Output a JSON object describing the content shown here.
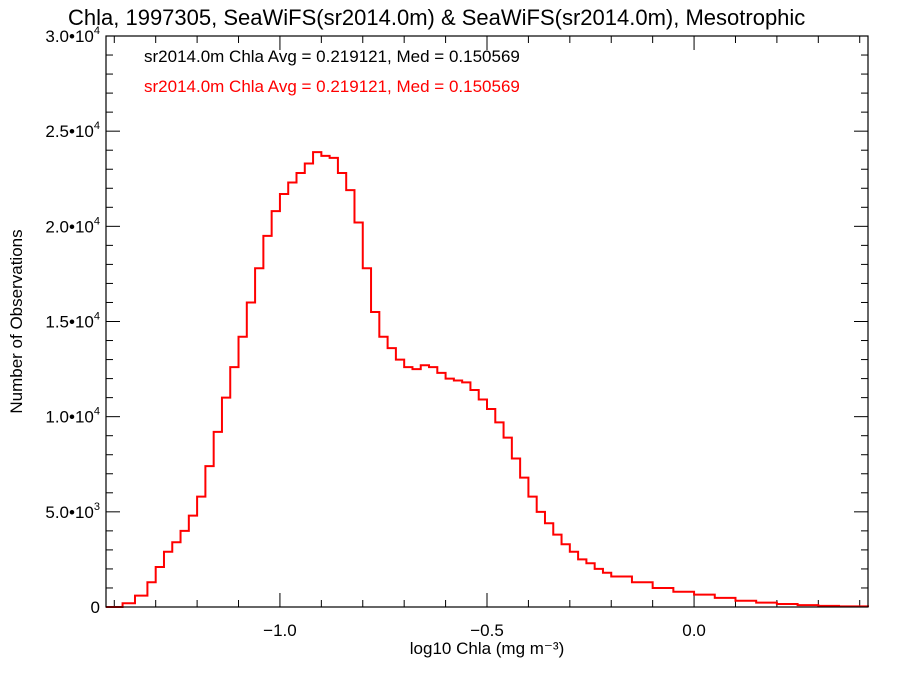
{
  "chart_data": {
    "type": "line",
    "step": true,
    "title": "Chla, 1997305, SeaWiFS(sr2014.0m) & SeaWiFS(sr2014.0m), Mesotrophic",
    "xlabel": "log10 Chla (mg m⁻³)",
    "ylabel": "Number of Observations",
    "xlim": [
      -1.42,
      0.42
    ],
    "ylim": [
      0,
      30000
    ],
    "x_ticks": [
      {
        "value": -1.0,
        "label": "−1.0"
      },
      {
        "value": -0.5,
        "label": "−0.5"
      },
      {
        "value": 0.0,
        "label": "0.0"
      }
    ],
    "y_ticks": [
      {
        "value": 0,
        "label": "0"
      },
      {
        "value": 5000,
        "label": "5.0•10",
        "exp": "3"
      },
      {
        "value": 10000,
        "label": "1.0•10",
        "exp": "4"
      },
      {
        "value": 15000,
        "label": "1.5•10",
        "exp": "4"
      },
      {
        "value": 20000,
        "label": "2.0•10",
        "exp": "4"
      },
      {
        "value": 25000,
        "label": "2.5•10",
        "exp": "4"
      },
      {
        "value": 30000,
        "label": "3.0•10",
        "exp": "4"
      }
    ],
    "annotations": [
      {
        "text": "sr2014.0m Chla Avg = 0.219121, Med = 0.150569",
        "color": "#000000"
      },
      {
        "text": "sr2014.0m Chla Avg = 0.219121, Med = 0.150569",
        "color": "#ff0000"
      }
    ],
    "series": [
      {
        "color": "#ff0000",
        "x": [
          -1.42,
          -1.38,
          -1.35,
          -1.32,
          -1.3,
          -1.28,
          -1.26,
          -1.24,
          -1.22,
          -1.2,
          -1.18,
          -1.16,
          -1.14,
          -1.12,
          -1.1,
          -1.08,
          -1.06,
          -1.04,
          -1.02,
          -1.0,
          -0.98,
          -0.96,
          -0.94,
          -0.92,
          -0.9,
          -0.88,
          -0.86,
          -0.84,
          -0.82,
          -0.8,
          -0.78,
          -0.76,
          -0.74,
          -0.72,
          -0.7,
          -0.68,
          -0.66,
          -0.64,
          -0.62,
          -0.6,
          -0.58,
          -0.56,
          -0.54,
          -0.52,
          -0.5,
          -0.48,
          -0.46,
          -0.44,
          -0.42,
          -0.4,
          -0.38,
          -0.36,
          -0.34,
          -0.32,
          -0.3,
          -0.28,
          -0.26,
          -0.24,
          -0.22,
          -0.2,
          -0.15,
          -0.1,
          -0.05,
          0.0,
          0.05,
          0.1,
          0.15,
          0.2,
          0.25,
          0.3,
          0.35,
          0.42
        ],
        "y": [
          0,
          200,
          600,
          1300,
          2100,
          2900,
          3400,
          4000,
          4800,
          5800,
          7400,
          9200,
          11000,
          12600,
          14200,
          16000,
          17800,
          19500,
          20800,
          21700,
          22300,
          22800,
          23300,
          23900,
          23700,
          23600,
          22800,
          21900,
          20200,
          17800,
          15500,
          14200,
          13600,
          13000,
          12600,
          12500,
          12700,
          12600,
          12300,
          12000,
          11900,
          11800,
          11400,
          10900,
          10400,
          9700,
          8900,
          7800,
          6800,
          5800,
          5000,
          4400,
          3800,
          3300,
          2900,
          2500,
          2300,
          2000,
          1800,
          1600,
          1300,
          1000,
          800,
          650,
          480,
          330,
          230,
          160,
          100,
          60,
          30,
          0
        ]
      }
    ]
  }
}
